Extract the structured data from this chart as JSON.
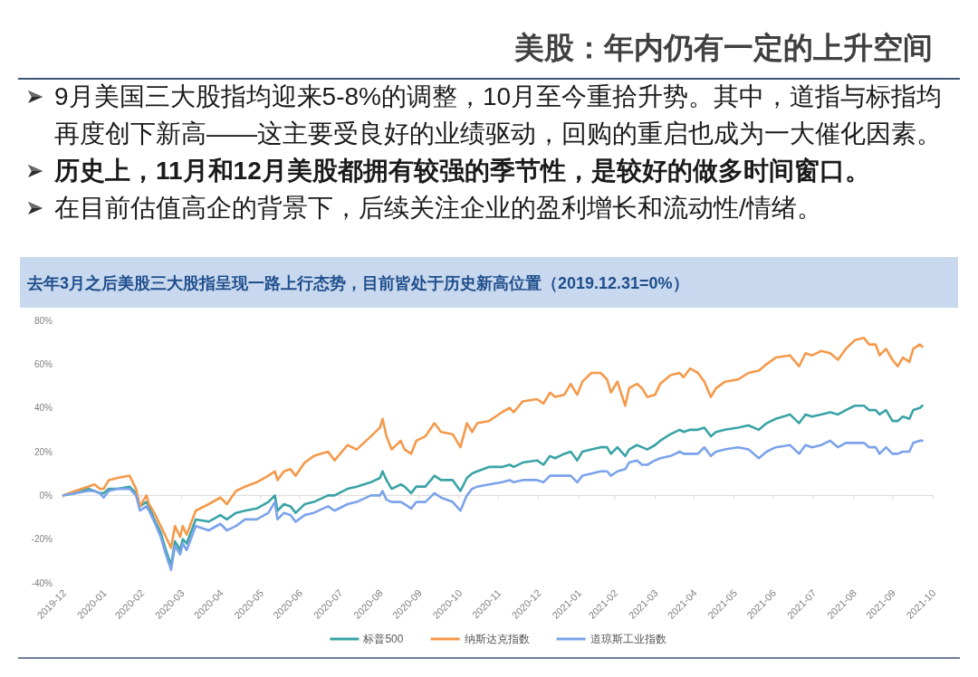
{
  "chart_data": {
    "type": "line",
    "title": "美股：年内仍有一定的上升空间",
    "subtitle": "去年3月之后美股三大股指呈现一路上行态势，目前皆处于历史新高位置（2019.12.31=0%）",
    "annotations": [
      "9月美国三大股指均迎来5-8%的调整，10月至今重拾升势。其中，道指与标指均再度创下新高——这主要受良好的业绩驱动，回购的重启也成为一大催化因素。",
      "历史上，11月和12月美股都拥有较强的季节性，是较好的做多时间窗口。",
      "在目前估值高企的背景下，后续关注企业的盈利增长和流动性/情绪。"
    ],
    "x": [
      "2019-12-31",
      "2020-01-09",
      "2020-01-19",
      "2020-01-24",
      "2020-01-28",
      "2020-01-31",
      "2020-02-04",
      "2020-02-11",
      "2020-02-20",
      "2020-02-25",
      "2020-02-28",
      "2020-03-04",
      "2020-03-06",
      "2020-03-10",
      "2020-03-15",
      "2020-03-19",
      "2020-03-23",
      "2020-03-26",
      "2020-03-30",
      "2020-04-01",
      "2020-04-04",
      "2020-04-11",
      "2020-04-21",
      "2020-04-30",
      "2020-05-05",
      "2020-05-12",
      "2020-05-19",
      "2020-05-28",
      "2020-06-06",
      "2020-06-11",
      "2020-06-13",
      "2020-06-18",
      "2020-06-23",
      "2020-06-27",
      "2020-07-04",
      "2020-07-11",
      "2020-07-22",
      "2020-07-27",
      "2020-08-06",
      "2020-08-13",
      "2020-08-24",
      "2020-08-31",
      "2020-09-02",
      "2020-09-05",
      "2020-09-09",
      "2020-09-16",
      "2020-09-19",
      "2020-09-24",
      "2020-09-28",
      "2020-10-05",
      "2020-10-12",
      "2020-10-17",
      "2020-10-26",
      "2020-11-01",
      "2020-11-06",
      "2020-11-10",
      "2020-11-14",
      "2020-11-23",
      "2020-12-03",
      "2020-12-09",
      "2020-12-12",
      "2020-12-19",
      "2020-12-30",
      "2021-01-04",
      "2021-01-09",
      "2021-01-13",
      "2021-01-20",
      "2021-01-25",
      "2021-01-30",
      "2021-02-03",
      "2021-02-10",
      "2021-02-17",
      "2021-02-22",
      "2021-02-25",
      "2021-03-02",
      "2021-03-08",
      "2021-03-11",
      "2021-03-17",
      "2021-03-21",
      "2021-03-25",
      "2021-03-31",
      "2021-04-04",
      "2021-04-12",
      "2021-04-19",
      "2021-04-22",
      "2021-04-27",
      "2021-05-03",
      "2021-05-08",
      "2021-05-13",
      "2021-05-17",
      "2021-05-24",
      "2021-06-03",
      "2021-06-11",
      "2021-06-19",
      "2021-06-25",
      "2021-07-02",
      "2021-07-13",
      "2021-07-20",
      "2021-07-25",
      "2021-07-30",
      "2021-08-06",
      "2021-08-13",
      "2021-08-19",
      "2021-08-25",
      "2021-09-01",
      "2021-09-08",
      "2021-09-12",
      "2021-09-17",
      "2021-09-20",
      "2021-09-25",
      "2021-09-30",
      "2021-10-04",
      "2021-10-08",
      "2021-10-13",
      "2021-10-16",
      "2021-10-21",
      "2021-10-23"
    ],
    "xlim": [
      "2019-12-31",
      "2021-10-31"
    ],
    "xticks": [
      {
        "value": "2019-12-31",
        "label": "2019-12"
      },
      {
        "value": "2020-01-31",
        "label": "2020-01"
      },
      {
        "value": "2020-02-29",
        "label": "2020-02"
      },
      {
        "value": "2020-03-31",
        "label": "2020-03"
      },
      {
        "value": "2020-04-30",
        "label": "2020-04"
      },
      {
        "value": "2020-05-31",
        "label": "2020-05"
      },
      {
        "value": "2020-06-30",
        "label": "2020-06"
      },
      {
        "value": "2020-07-31",
        "label": "2020-07"
      },
      {
        "value": "2020-08-31",
        "label": "2020-08"
      },
      {
        "value": "2020-09-30",
        "label": "2020-09"
      },
      {
        "value": "2020-10-31",
        "label": "2020-10"
      },
      {
        "value": "2020-11-30",
        "label": "2020-11"
      },
      {
        "value": "2020-12-31",
        "label": "2020-12"
      },
      {
        "value": "2021-01-31",
        "label": "2021-01"
      },
      {
        "value": "2021-02-28",
        "label": "2021-02"
      },
      {
        "value": "2021-03-31",
        "label": "2021-03"
      },
      {
        "value": "2021-04-30",
        "label": "2021-04"
      },
      {
        "value": "2021-05-31",
        "label": "2021-05"
      },
      {
        "value": "2021-06-30",
        "label": "2021-06"
      },
      {
        "value": "2021-07-31",
        "label": "2021-07"
      },
      {
        "value": "2021-08-31",
        "label": "2021-08"
      },
      {
        "value": "2021-09-30",
        "label": "2021-09"
      },
      {
        "value": "2021-10-31",
        "label": "2021-10"
      }
    ],
    "ylim": [
      -40,
      80
    ],
    "yticks": [
      {
        "value": -40,
        "label": "-40%"
      },
      {
        "value": -20,
        "label": "-20%"
      },
      {
        "value": 0,
        "label": "0%"
      },
      {
        "value": 20,
        "label": "20%"
      },
      {
        "value": 40,
        "label": "40%"
      },
      {
        "value": 60,
        "label": "60%"
      },
      {
        "value": 80,
        "label": "80%"
      }
    ],
    "series": [
      {
        "name": "标普500",
        "color": "#3ba3a6",
        "values": [
          0,
          1,
          3,
          2,
          1,
          1,
          3,
          3,
          4,
          1,
          -5,
          -3,
          -5,
          -11,
          -17,
          -25,
          -32,
          -21,
          -25,
          -20,
          -22,
          -11,
          -12,
          -9,
          -11,
          -8,
          -7,
          -6,
          -3,
          0,
          -7,
          -4,
          -5,
          -8,
          -4,
          -3,
          0,
          0,
          3,
          4,
          6,
          8,
          11,
          7,
          3,
          5,
          4,
          1,
          4,
          4,
          9,
          7,
          7,
          2,
          8,
          10,
          11,
          13,
          13,
          14,
          13,
          15,
          16,
          14,
          18,
          17,
          19,
          20,
          16,
          20,
          21,
          22,
          22,
          19,
          22,
          18,
          21,
          23,
          22,
          21,
          23,
          25,
          28,
          30,
          29,
          30,
          30,
          31,
          27,
          29,
          30,
          31,
          32,
          30,
          33,
          35,
          37,
          33,
          37,
          36,
          37,
          38,
          37,
          39,
          41,
          41,
          39,
          39,
          37,
          39,
          34,
          34,
          36,
          35,
          39,
          40,
          41
        ]
      },
      {
        "name": "纳斯达克指数",
        "color": "#f4994a",
        "values": [
          0,
          2,
          4,
          5,
          3,
          3,
          7,
          8,
          9,
          3,
          -5,
          0,
          -4,
          -8,
          -14,
          -19,
          -24,
          -14,
          -19,
          -14,
          -18,
          -7,
          -4,
          -1,
          -4,
          2,
          4,
          6,
          9,
          11,
          7,
          11,
          12,
          9,
          15,
          18,
          20,
          16,
          23,
          21,
          27,
          31,
          35,
          27,
          21,
          25,
          21,
          19,
          25,
          27,
          33,
          29,
          28,
          22,
          33,
          29,
          33,
          34,
          38,
          40,
          38,
          43,
          44,
          42,
          47,
          45,
          46,
          51,
          46,
          52,
          56,
          56,
          53,
          47,
          52,
          41,
          49,
          51,
          49,
          45,
          46,
          51,
          55,
          56,
          54,
          58,
          56,
          52,
          45,
          49,
          52,
          53,
          56,
          57,
          60,
          63,
          64,
          59,
          65,
          64,
          66,
          65,
          62,
          67,
          71,
          72,
          69,
          69,
          64,
          67,
          62,
          59,
          63,
          61,
          67,
          69,
          68
        ]
      },
      {
        "name": "道琼斯工业指数",
        "color": "#7ba3ea",
        "values": [
          0,
          1,
          2,
          2,
          1,
          -1,
          2,
          3,
          3,
          0,
          -7,
          -5,
          -7,
          -12,
          -19,
          -27,
          -34,
          -23,
          -27,
          -22,
          -25,
          -14,
          -16,
          -13,
          -16,
          -14,
          -11,
          -11,
          -8,
          -3,
          -11,
          -8,
          -9,
          -12,
          -9,
          -8,
          -5,
          -7,
          -4,
          -3,
          0,
          0,
          2,
          -2,
          -3,
          -3,
          -4,
          -6,
          -3,
          -3,
          1,
          -1,
          -3,
          -7,
          0,
          3,
          4,
          5,
          6,
          7,
          6,
          7,
          7,
          6,
          9,
          9,
          9,
          9,
          6,
          9,
          10,
          11,
          11,
          9,
          11,
          12,
          15,
          16,
          14,
          14,
          16,
          17,
          18,
          20,
          19,
          19,
          19,
          22,
          18,
          20,
          21,
          22,
          21,
          17,
          20,
          22,
          23,
          19,
          23,
          22,
          23,
          25,
          22,
          24,
          24,
          24,
          22,
          22,
          19,
          22,
          19,
          19,
          20,
          20,
          24,
          25,
          25
        ]
      }
    ],
    "legend": "bottom"
  }
}
